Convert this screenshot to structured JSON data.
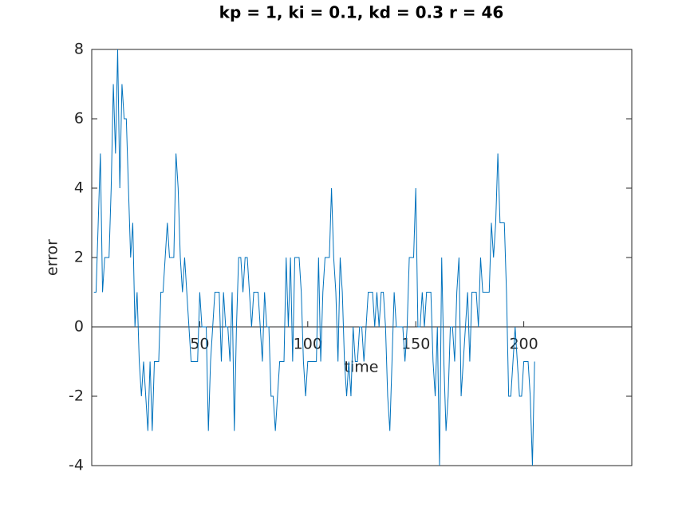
{
  "chart_data": {
    "type": "line",
    "title": "kp = 1, ki = 0.1, kd = 0.3 r = 46",
    "xlabel": "time",
    "ylabel": "error",
    "xlim": [
      0,
      250
    ],
    "ylim": [
      -4,
      8
    ],
    "xticks": [
      50,
      100,
      150,
      200
    ],
    "yticks": [
      -4,
      -2,
      0,
      2,
      4,
      6,
      8
    ],
    "series": [
      {
        "color": "#0072bd",
        "x": [
          1,
          2,
          3,
          4,
          5,
          6,
          7,
          8,
          9,
          10,
          11,
          12,
          13,
          14,
          15,
          16,
          17,
          18,
          19,
          20,
          21,
          22,
          23,
          24,
          25,
          26,
          27,
          28,
          29,
          30,
          31,
          32,
          33,
          34,
          35,
          36,
          37,
          38,
          39,
          40,
          41,
          42,
          43,
          44,
          45,
          46,
          47,
          48,
          49,
          50,
          51,
          52,
          53,
          54,
          55,
          56,
          57,
          58,
          59,
          60,
          61,
          62,
          63,
          64,
          65,
          66,
          67,
          68,
          69,
          70,
          71,
          72,
          73,
          74,
          75,
          76,
          77,
          78,
          79,
          80,
          81,
          82,
          83,
          84,
          85,
          86,
          87,
          88,
          89,
          90,
          91,
          92,
          93,
          94,
          95,
          96,
          97,
          98,
          99,
          100,
          101,
          102,
          103,
          104,
          105,
          106,
          107,
          108,
          109,
          110,
          111,
          112,
          113,
          114,
          115,
          116,
          117,
          118,
          119,
          120,
          121,
          122,
          123,
          124,
          125,
          126,
          127,
          128,
          129,
          130,
          131,
          132,
          133,
          134,
          135,
          136,
          137,
          138,
          139,
          140,
          141,
          142,
          143,
          144,
          145,
          146,
          147,
          148,
          149,
          150,
          151,
          152,
          153,
          154,
          155,
          156,
          157,
          158,
          159,
          160,
          161,
          162,
          163,
          164,
          165,
          166,
          167,
          168,
          169,
          170,
          171,
          172,
          173,
          174,
          175,
          176,
          177,
          178,
          179,
          180,
          181,
          182,
          183,
          184,
          185,
          186,
          187,
          188,
          189,
          190,
          191,
          192,
          193,
          194,
          195,
          196,
          197,
          198,
          199,
          200,
          201,
          202,
          203,
          204,
          205
        ],
        "values": [
          1,
          1,
          3,
          5,
          1,
          2,
          2,
          2,
          4,
          7,
          5,
          8,
          4,
          7,
          6,
          6,
          4,
          2,
          3,
          0,
          1,
          -1,
          -2,
          -1,
          -2,
          -3,
          -1,
          -3,
          -1,
          -1,
          -1,
          1,
          1,
          2,
          3,
          2,
          2,
          2,
          5,
          4,
          2,
          1,
          2,
          1,
          0,
          -1,
          -1,
          -1,
          -1,
          1,
          0,
          0,
          0,
          -3,
          -1,
          0,
          1,
          1,
          1,
          -1,
          1,
          0,
          0,
          -1,
          1,
          -3,
          0,
          2,
          2,
          1,
          2,
          2,
          1,
          0,
          1,
          1,
          1,
          0,
          -1,
          1,
          0,
          0,
          -2,
          -2,
          -3,
          -2,
          -1,
          -1,
          -1,
          2,
          0,
          2,
          -1,
          2,
          2,
          2,
          1,
          -1,
          -2,
          -1,
          -1,
          -1,
          -1,
          -1,
          2,
          -1,
          1,
          2,
          2,
          2,
          4,
          2,
          1,
          -1,
          2,
          1,
          -1,
          -2,
          -1,
          -2,
          0,
          -1,
          -1,
          0,
          0,
          -1,
          0,
          1,
          1,
          1,
          0,
          1,
          0,
          1,
          1,
          0,
          -2,
          -3,
          -1,
          1,
          0,
          0,
          0,
          0,
          -1,
          0,
          2,
          2,
          2,
          4,
          0,
          0,
          1,
          0,
          1,
          1,
          1,
          -1,
          -2,
          0,
          -4,
          2,
          -1,
          -3,
          -2,
          0,
          0,
          -1,
          1,
          2,
          -2,
          -1,
          0,
          1,
          -1,
          1,
          1,
          1,
          0,
          2,
          1,
          1,
          1,
          1,
          3,
          2,
          3,
          5,
          3,
          3,
          3,
          1,
          -2,
          -2,
          -1,
          0,
          -1,
          -2,
          -2,
          -1,
          -1,
          -1,
          -2,
          -4,
          -1
        ]
      }
    ]
  }
}
